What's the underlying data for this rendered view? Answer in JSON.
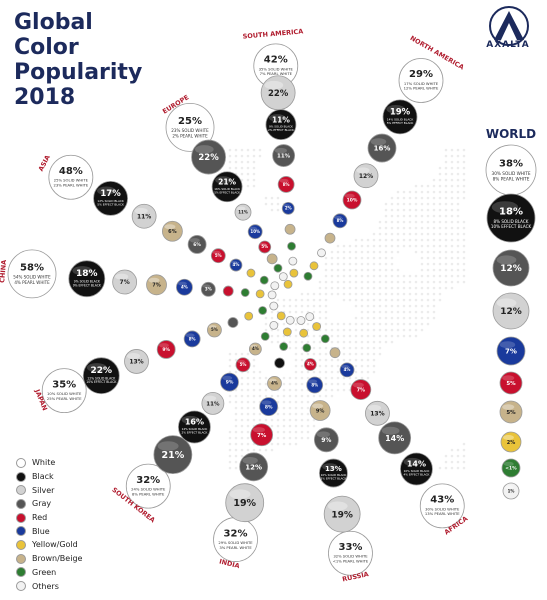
{
  "header": {
    "title_line1": "Global Color",
    "title_line2": "Popularity",
    "title_line3": "2018",
    "logo_text": "AXALTA"
  },
  "colors": {
    "White": "#ffffff",
    "Black": "#111111",
    "Silver": "#d2d2d2",
    "Gray": "#555555",
    "Red": "#c8102e",
    "Blue": "#1a3a9c",
    "Yellow/Gold": "#e9c33a",
    "Brown/Beige": "#c7b38b",
    "Green": "#2e7d32",
    "Others": "#f2f2f2"
  },
  "legend": [
    "White",
    "Black",
    "Silver",
    "Gray",
    "Red",
    "Blue",
    "Yellow/Gold",
    "Brown/Beige",
    "Green",
    "Others"
  ],
  "chart_data": {
    "type": "radial-bubble",
    "title": "Global Color Popularity 2018",
    "regions": [
      {
        "name": "EUROPE",
        "slices": [
          {
            "color": "White",
            "value": "25%",
            "detail": [
              "23% SOLID WHITE",
              "2% PEARL WHITE"
            ]
          },
          {
            "color": "Gray",
            "value": "22%"
          },
          {
            "color": "Black",
            "value": "21%",
            "detail": [
              "16% SOLID BLACK",
              "5% EFFECT BLACK"
            ]
          },
          {
            "color": "Silver",
            "value": "11%"
          },
          {
            "color": "Blue",
            "value": "10%"
          },
          {
            "color": "Red",
            "value": "5%"
          },
          {
            "color": "Brown/Beige",
            "value": "3%"
          },
          {
            "color": "Green",
            "value": "1%"
          },
          {
            "color": "Others",
            "value": "1%"
          },
          {
            "color": "Yellow/Gold",
            "value": "<1%"
          }
        ]
      },
      {
        "name": "SOUTH AMERICA",
        "slices": [
          {
            "color": "White",
            "value": "42%",
            "detail": [
              "35% SOLID WHITE",
              "7% PEARL WHITE"
            ]
          },
          {
            "color": "Silver",
            "value": "22%"
          },
          {
            "color": "Black",
            "value": "11%",
            "detail": [
              "9% SOLID BLACK",
              "2% EFFECT BLACK"
            ]
          },
          {
            "color": "Gray",
            "value": "11%"
          },
          {
            "color": "Red",
            "value": "8%"
          },
          {
            "color": "Blue",
            "value": "2%"
          },
          {
            "color": "Brown/Beige",
            "value": "2%"
          },
          {
            "color": "Green",
            "value": "1%"
          },
          {
            "color": "Others",
            "value": "1%"
          },
          {
            "color": "Yellow/Gold",
            "value": "<1%"
          }
        ]
      },
      {
        "name": "NORTH AMERICA",
        "slices": [
          {
            "color": "White",
            "value": "29%",
            "detail": [
              "17% SOLID WHITE",
              "12% PEARL WHITE"
            ]
          },
          {
            "color": "Black",
            "value": "19%",
            "detail": [
              "14% SOLID BLACK",
              "5% EFFECT BLACK"
            ]
          },
          {
            "color": "Gray",
            "value": "16%"
          },
          {
            "color": "Silver",
            "value": "12%"
          },
          {
            "color": "Red",
            "value": "10%"
          },
          {
            "color": "Blue",
            "value": "8%"
          },
          {
            "color": "Brown/Beige",
            "value": "3%"
          },
          {
            "color": "Others",
            "value": "1%"
          },
          {
            "color": "Yellow/Gold",
            "value": "1%"
          },
          {
            "color": "Green",
            "value": "1%"
          }
        ]
      },
      {
        "name": "ASIA",
        "slices": [
          {
            "color": "White",
            "value": "48%",
            "detail": [
              "25% SOLID WHITE",
              "23% PEARL WHITE"
            ]
          },
          {
            "color": "Black",
            "value": "17%",
            "detail": [
              "12% SOLID BLACK",
              "5% EFFECT BLACK"
            ]
          },
          {
            "color": "Silver",
            "value": "11%"
          },
          {
            "color": "Brown/Beige",
            "value": "6%"
          },
          {
            "color": "Gray",
            "value": "6%"
          },
          {
            "color": "Red",
            "value": "5%"
          },
          {
            "color": "Blue",
            "value": "4%"
          },
          {
            "color": "Yellow/Gold",
            "value": "1%"
          },
          {
            "color": "Green",
            "value": "1%"
          },
          {
            "color": "Others",
            "value": "1%"
          }
        ]
      },
      {
        "name": "CHINA",
        "slices": [
          {
            "color": "White",
            "value": "58%",
            "detail": [
              "54% SOLID WHITE",
              "4% PEARL WHITE"
            ]
          },
          {
            "color": "Black",
            "value": "18%",
            "detail": [
              "9% SOLID BLACK",
              "9% EFFECT BLACK"
            ]
          },
          {
            "color": "Silver",
            "value": "7%"
          },
          {
            "color": "Brown/Beige",
            "value": "7%"
          },
          {
            "color": "Blue",
            "value": "4%"
          },
          {
            "color": "Gray",
            "value": "3%"
          },
          {
            "color": "Red",
            "value": "2%"
          },
          {
            "color": "Green",
            "value": "1%"
          },
          {
            "color": "Yellow/Gold",
            "value": "<1%"
          },
          {
            "color": "Others",
            "value": "<1%"
          }
        ]
      },
      {
        "name": "JAPAN",
        "slices": [
          {
            "color": "White",
            "value": "35%",
            "detail": [
              "10% SOLID WHITE",
              "25% PEARL WHITE"
            ]
          },
          {
            "color": "Black",
            "value": "22%",
            "detail": [
              "12% SOLID BLACK",
              "10% EFFECT BLACK"
            ]
          },
          {
            "color": "Silver",
            "value": "13%"
          },
          {
            "color": "Red",
            "value": "9%"
          },
          {
            "color": "Blue",
            "value": "8%"
          },
          {
            "color": "Brown/Beige",
            "value": "5%"
          },
          {
            "color": "Gray",
            "value": "5%"
          },
          {
            "color": "Yellow/Gold",
            "value": "1%"
          },
          {
            "color": "Green",
            "value": "1%"
          },
          {
            "color": "Others",
            "value": "1%"
          }
        ]
      },
      {
        "name": "SOUTH KOREA",
        "slices": [
          {
            "color": "White",
            "value": "32%",
            "detail": [
              "24% SOLID WHITE",
              "8% PEARL WHITE"
            ]
          },
          {
            "color": "Gray",
            "value": "21%"
          },
          {
            "color": "Black",
            "value": "16%",
            "detail": [
              "14% SOLID BLACK",
              "2% EFFECT BLACK"
            ]
          },
          {
            "color": "Silver",
            "value": "11%"
          },
          {
            "color": "Blue",
            "value": "9%"
          },
          {
            "color": "Red",
            "value": "5%"
          },
          {
            "color": "Brown/Beige",
            "value": "4%"
          },
          {
            "color": "Green",
            "value": "1%"
          },
          {
            "color": "Others",
            "value": "1%"
          },
          {
            "color": "Yellow/Gold",
            "value": "<1%"
          }
        ]
      },
      {
        "name": "INDIA",
        "slices": [
          {
            "color": "White",
            "value": "32%",
            "detail": [
              "29% SOLID WHITE",
              "3% PEARL WHITE"
            ]
          },
          {
            "color": "Silver",
            "value": "19%"
          },
          {
            "color": "Gray",
            "value": "12%"
          },
          {
            "color": "Red",
            "value": "7%"
          },
          {
            "color": "Blue",
            "value": "8%"
          },
          {
            "color": "Brown/Beige",
            "value": "4%"
          },
          {
            "color": "Black",
            "value": "3%"
          },
          {
            "color": "Green",
            "value": "1%"
          },
          {
            "color": "Yellow/Gold",
            "value": "1%"
          },
          {
            "color": "Others",
            "value": "1%"
          }
        ]
      },
      {
        "name": "RUSSIA",
        "slices": [
          {
            "color": "White",
            "value": "33%",
            "detail": [
              "32% SOLID WHITE",
              "<1% PEARL WHITE"
            ]
          },
          {
            "color": "Silver",
            "value": "19%"
          },
          {
            "color": "Black",
            "value": "13%",
            "detail": [
              "10% SOLID BLACK",
              "3% EFFECT BLACK"
            ]
          },
          {
            "color": "Gray",
            "value": "9%"
          },
          {
            "color": "Brown/Beige",
            "value": "9%"
          },
          {
            "color": "Blue",
            "value": "8%"
          },
          {
            "color": "Red",
            "value": "4%"
          },
          {
            "color": "Green",
            "value": "2%"
          },
          {
            "color": "Yellow/Gold",
            "value": "1%"
          },
          {
            "color": "Others",
            "value": "1%"
          }
        ]
      },
      {
        "name": "AFRICA",
        "slices": [
          {
            "color": "White",
            "value": "43%",
            "detail": [
              "30% SOLID WHITE",
              "13% PEARL WHITE"
            ]
          },
          {
            "color": "Black",
            "value": "14%",
            "detail": [
              "10% SOLID BLACK",
              "4% EFFECT BLACK"
            ]
          },
          {
            "color": "Gray",
            "value": "14%"
          },
          {
            "color": "Silver",
            "value": "13%"
          },
          {
            "color": "Red",
            "value": "7%"
          },
          {
            "color": "Blue",
            "value": "4%"
          },
          {
            "color": "Brown/Beige",
            "value": "2%"
          },
          {
            "color": "Green",
            "value": "1%"
          },
          {
            "color": "Yellow/Gold",
            "value": "1%"
          },
          {
            "color": "Others",
            "value": "1%"
          }
        ]
      }
    ],
    "world": {
      "name": "WORLD",
      "slices": [
        {
          "color": "White",
          "value": "38%",
          "detail": [
            "30% SOLID WHITE",
            "8% PEARL WHITE"
          ]
        },
        {
          "color": "Black",
          "value": "18%",
          "detail": [
            "8% SOLID BLACK",
            "10% EFFECT BLACK"
          ]
        },
        {
          "color": "Gray",
          "value": "12%"
        },
        {
          "color": "Silver",
          "value": "12%"
        },
        {
          "color": "Blue",
          "value": "7%"
        },
        {
          "color": "Red",
          "value": "5%"
        },
        {
          "color": "Brown/Beige",
          "value": "5%"
        },
        {
          "color": "Yellow/Gold",
          "value": "2%"
        },
        {
          "color": "Green",
          "value": "<1%"
        },
        {
          "color": "Others",
          "value": "1%"
        }
      ]
    }
  }
}
